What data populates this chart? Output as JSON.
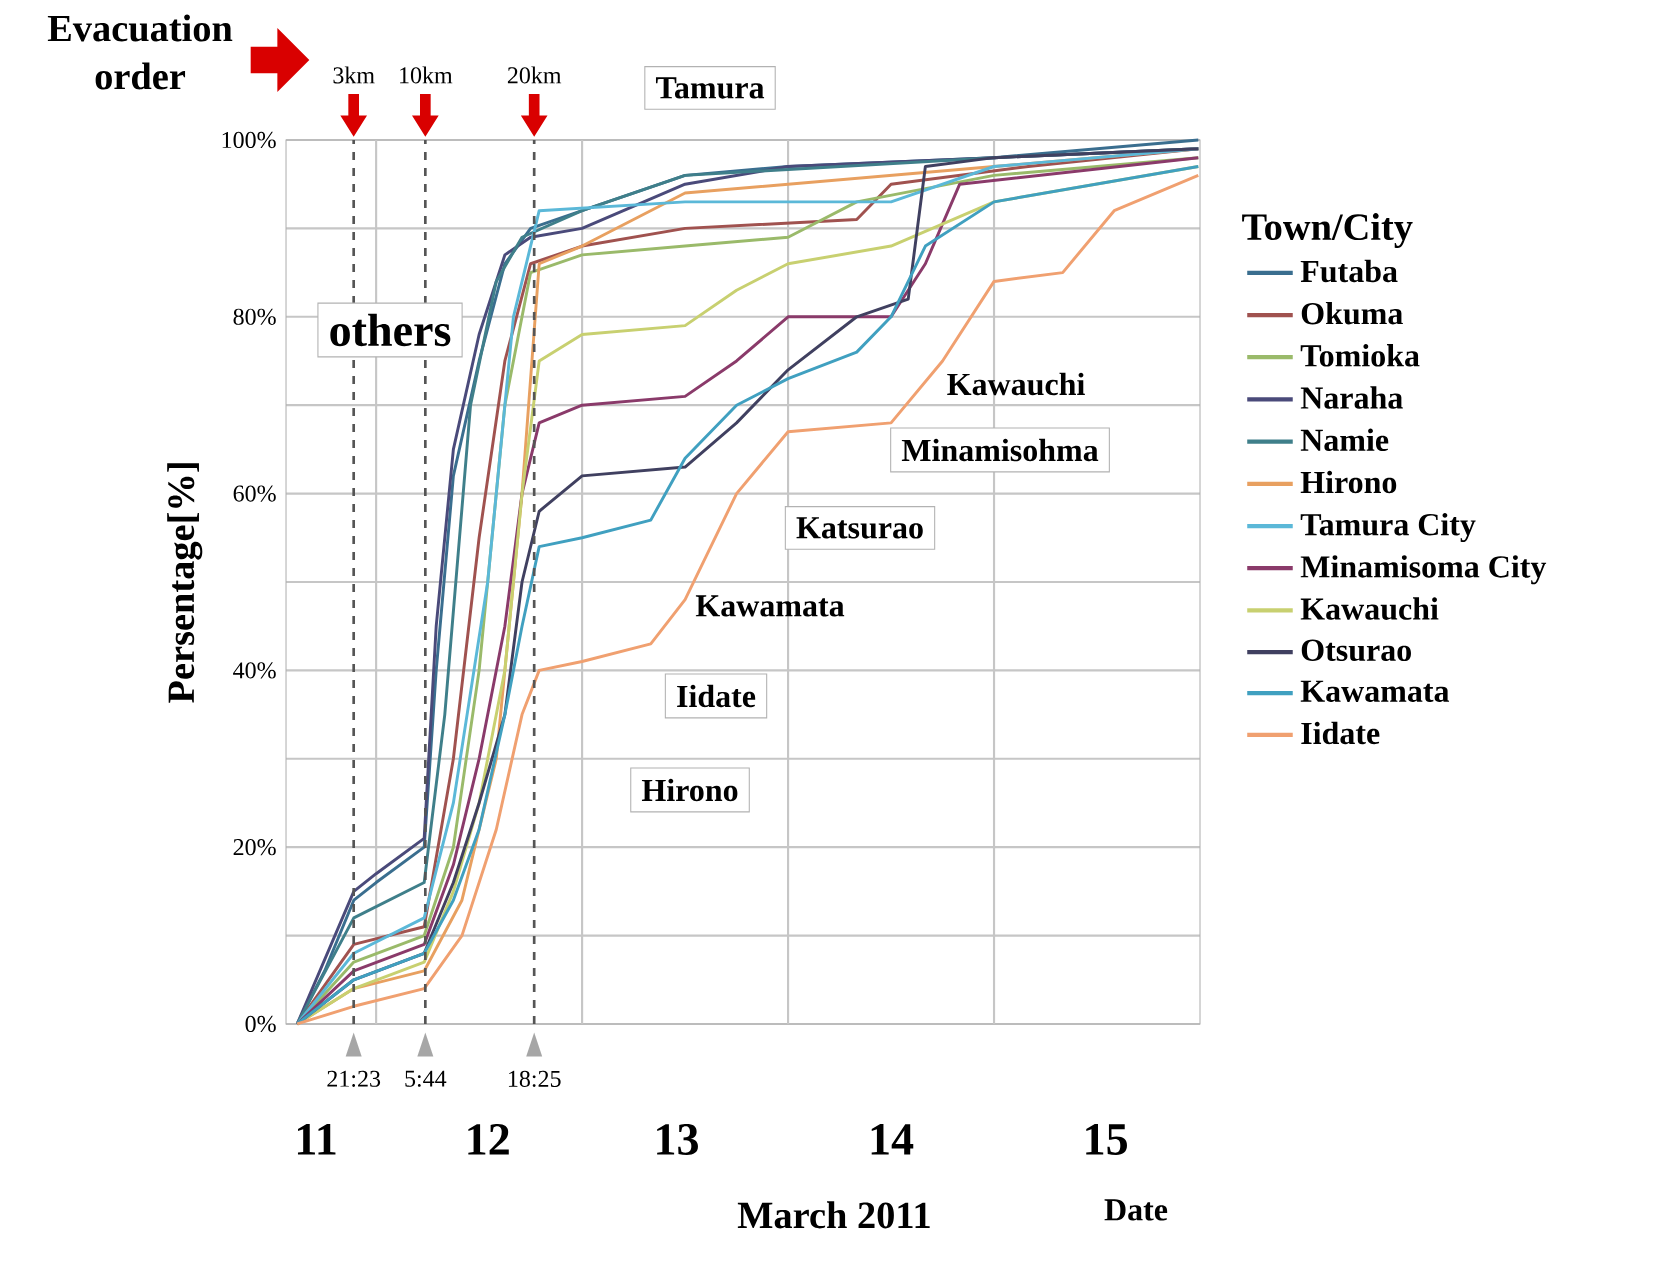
{
  "chart_data": {
    "type": "line",
    "xlabel": "March 2011",
    "ylabel": "Persentage[%]",
    "legend_title": "Town/City",
    "xlim": [
      "2011-03-11T13:30",
      "2011-03-16T00:00"
    ],
    "ylim": [
      0,
      100
    ],
    "xticks": [
      {
        "value": "2011-03-11T17:00",
        "label": "11"
      },
      {
        "value": "2011-03-12T13:00",
        "label": "12"
      },
      {
        "value": "2011-03-13T11:00",
        "label": "13"
      },
      {
        "value": "2011-03-14T12:00",
        "label": "14"
      },
      {
        "value": "2011-03-15T13:00",
        "label": "15"
      },
      {
        "value": "2011-03-12T00:00",
        "label": null
      },
      {
        "value": "2011-03-13T00:00",
        "label": null
      },
      {
        "value": "2011-03-14T00:00",
        "label": null
      },
      {
        "value": "2011-03-15T00:00",
        "label": null
      }
    ],
    "yticks": [
      {
        "value": 0,
        "label": "0%"
      },
      {
        "value": 10,
        "label": null
      },
      {
        "value": 20,
        "label": "20%"
      },
      {
        "value": 30,
        "label": null
      },
      {
        "value": 40,
        "label": "40%"
      },
      {
        "value": 50,
        "label": null
      },
      {
        "value": 60,
        "label": "60%"
      },
      {
        "value": 70,
        "label": null
      },
      {
        "value": 80,
        "label": "80%"
      },
      {
        "value": 90,
        "label": null
      },
      {
        "value": 100,
        "label": "100%"
      }
    ],
    "grid": true,
    "legend": "right",
    "series": [
      {
        "name": "Futaba",
        "color": "#3a6e8f",
        "x": [
          "2011-03-11T14:48",
          "2011-03-11T18:00",
          "2011-03-11T21:24",
          "2011-03-12T00:00",
          "2011-03-12T05:36",
          "2011-03-12T07:00",
          "2011-03-12T09:00",
          "2011-03-12T12:00",
          "2011-03-12T15:00",
          "2011-03-12T18:00",
          "2011-03-13T00:00",
          "2011-03-13T12:00",
          "2011-03-14T00:00",
          "2011-03-15T00:00",
          "2011-03-15T23:48"
        ],
        "values": [
          0,
          6,
          14,
          16,
          20,
          40,
          62,
          75,
          86,
          90,
          92,
          96,
          97,
          98,
          100
        ]
      },
      {
        "name": "Okuma",
        "color": "#a0524f",
        "x": [
          "2011-03-11T14:48",
          "2011-03-11T21:24",
          "2011-03-12T05:36",
          "2011-03-12T09:00",
          "2011-03-12T12:00",
          "2011-03-12T15:00",
          "2011-03-12T18:00",
          "2011-03-13T00:00",
          "2011-03-13T12:00",
          "2011-03-14T08:00",
          "2011-03-14T12:00",
          "2011-03-15T04:00",
          "2011-03-15T23:48"
        ],
        "values": [
          0,
          9,
          11,
          30,
          55,
          75,
          86,
          88,
          90,
          91,
          95,
          97,
          99
        ]
      },
      {
        "name": "Tomioka",
        "color": "#9aba6a",
        "x": [
          "2011-03-11T14:48",
          "2011-03-11T21:24",
          "2011-03-12T05:36",
          "2011-03-12T09:00",
          "2011-03-12T12:00",
          "2011-03-12T15:00",
          "2011-03-12T18:00",
          "2011-03-13T00:00",
          "2011-03-13T12:00",
          "2011-03-14T00:00",
          "2011-03-14T08:00",
          "2011-03-15T00:00",
          "2011-03-15T23:48"
        ],
        "values": [
          0,
          7,
          10,
          20,
          40,
          70,
          85,
          87,
          88,
          89,
          93,
          96,
          98
        ]
      },
      {
        "name": "Naraha",
        "color": "#4a4a7a",
        "x": [
          "2011-03-11T14:48",
          "2011-03-11T21:24",
          "2011-03-12T00:00",
          "2011-03-12T05:36",
          "2011-03-12T07:00",
          "2011-03-12T09:00",
          "2011-03-12T12:00",
          "2011-03-12T15:00",
          "2011-03-12T18:00",
          "2011-03-13T00:00",
          "2011-03-13T12:00",
          "2011-03-14T00:00",
          "2011-03-15T00:00",
          "2011-03-15T23:48"
        ],
        "values": [
          0,
          15,
          17,
          21,
          45,
          65,
          78,
          87,
          89,
          90,
          95,
          97,
          98,
          99
        ]
      },
      {
        "name": "Namie",
        "color": "#3f7f8a",
        "x": [
          "2011-03-11T14:48",
          "2011-03-11T21:24",
          "2011-03-12T05:36",
          "2011-03-12T08:00",
          "2011-03-12T11:00",
          "2011-03-12T14:00",
          "2011-03-12T17:00",
          "2011-03-13T00:00",
          "2011-03-13T12:00",
          "2011-03-15T00:00",
          "2011-03-15T23:48"
        ],
        "values": [
          0,
          12,
          16,
          35,
          70,
          84,
          89,
          92,
          96,
          98,
          99
        ]
      },
      {
        "name": "Hirono",
        "color": "#e8a060",
        "x": [
          "2011-03-11T14:48",
          "2011-03-11T21:24",
          "2011-03-12T05:36",
          "2011-03-12T10:00",
          "2011-03-12T14:00",
          "2011-03-12T17:00",
          "2011-03-12T19:00",
          "2011-03-13T00:00",
          "2011-03-13T12:00",
          "2011-03-15T00:00",
          "2011-03-15T23:48"
        ],
        "values": [
          0,
          4,
          6,
          14,
          30,
          60,
          86,
          88,
          94,
          97,
          99
        ]
      },
      {
        "name": "Tamura City",
        "color": "#5bb8d8",
        "x": [
          "2011-03-11T14:48",
          "2011-03-11T21:24",
          "2011-03-12T05:36",
          "2011-03-12T09:00",
          "2011-03-12T13:00",
          "2011-03-12T16:00",
          "2011-03-12T19:00",
          "2011-03-13T12:00",
          "2011-03-14T12:00",
          "2011-03-15T00:00",
          "2011-03-15T23:48"
        ],
        "values": [
          0,
          8,
          12,
          25,
          50,
          80,
          92,
          93,
          93,
          97,
          99
        ]
      },
      {
        "name": "Minamisoma City",
        "color": "#8a3a6a",
        "x": [
          "2011-03-11T14:48",
          "2011-03-11T21:24",
          "2011-03-12T05:36",
          "2011-03-12T09:00",
          "2011-03-12T12:00",
          "2011-03-12T15:00",
          "2011-03-12T17:00",
          "2011-03-12T19:00",
          "2011-03-13T00:00",
          "2011-03-13T12:00",
          "2011-03-13T18:00",
          "2011-03-14T00:00",
          "2011-03-14T12:00",
          "2011-03-14T16:00",
          "2011-03-14T20:00",
          "2011-03-15T23:48"
        ],
        "values": [
          0,
          6,
          9,
          18,
          30,
          45,
          60,
          68,
          70,
          71,
          75,
          80,
          80,
          86,
          95,
          98
        ]
      },
      {
        "name": "Kawauchi",
        "color": "#c8d070",
        "x": [
          "2011-03-11T14:48",
          "2011-03-11T21:24",
          "2011-03-12T05:36",
          "2011-03-12T09:00",
          "2011-03-12T12:00",
          "2011-03-12T15:00",
          "2011-03-12T17:00",
          "2011-03-12T19:00",
          "2011-03-13T00:00",
          "2011-03-13T12:00",
          "2011-03-13T18:00",
          "2011-03-14T00:00",
          "2011-03-14T12:00",
          "2011-03-15T00:00",
          "2011-03-15T23:48"
        ],
        "values": [
          0,
          4,
          7,
          15,
          25,
          40,
          60,
          75,
          78,
          79,
          83,
          86,
          88,
          93,
          97
        ]
      },
      {
        "name": "Otsurao",
        "color": "#404060",
        "x": [
          "2011-03-11T14:48",
          "2011-03-11T21:24",
          "2011-03-12T05:36",
          "2011-03-12T09:00",
          "2011-03-12T12:00",
          "2011-03-12T15:00",
          "2011-03-12T17:00",
          "2011-03-12T19:00",
          "2011-03-13T00:00",
          "2011-03-13T12:00",
          "2011-03-13T18:00",
          "2011-03-14T00:00",
          "2011-03-14T08:00",
          "2011-03-14T14:00",
          "2011-03-14T16:00",
          "2011-03-15T00:00",
          "2011-03-15T23:48"
        ],
        "values": [
          0,
          5,
          8,
          16,
          25,
          35,
          50,
          58,
          62,
          63,
          68,
          74,
          80,
          82,
          97,
          98,
          99
        ]
      },
      {
        "name": "Kawamata",
        "color": "#40a0c0",
        "x": [
          "2011-03-11T14:48",
          "2011-03-11T21:24",
          "2011-03-12T05:36",
          "2011-03-12T09:00",
          "2011-03-12T12:00",
          "2011-03-12T15:00",
          "2011-03-12T17:00",
          "2011-03-12T19:00",
          "2011-03-13T00:00",
          "2011-03-13T08:00",
          "2011-03-13T12:00",
          "2011-03-13T18:00",
          "2011-03-14T00:00",
          "2011-03-14T08:00",
          "2011-03-14T12:00",
          "2011-03-14T16:00",
          "2011-03-15T00:00",
          "2011-03-15T23:48"
        ],
        "values": [
          0,
          5,
          8,
          14,
          22,
          35,
          45,
          54,
          55,
          57,
          64,
          70,
          73,
          76,
          80,
          88,
          93,
          97
        ]
      },
      {
        "name": "Iidate",
        "color": "#f0a070",
        "x": [
          "2011-03-11T14:48",
          "2011-03-11T21:24",
          "2011-03-12T05:36",
          "2011-03-12T10:00",
          "2011-03-12T14:00",
          "2011-03-12T17:00",
          "2011-03-12T19:00",
          "2011-03-13T00:00",
          "2011-03-13T08:00",
          "2011-03-13T12:00",
          "2011-03-13T18:00",
          "2011-03-14T00:00",
          "2011-03-14T12:00",
          "2011-03-14T18:00",
          "2011-03-15T00:00",
          "2011-03-15T08:00",
          "2011-03-15T14:00",
          "2011-03-15T23:48"
        ],
        "values": [
          0,
          2,
          4,
          10,
          22,
          35,
          40,
          41,
          43,
          48,
          60,
          67,
          68,
          75,
          84,
          85,
          92,
          96
        ]
      }
    ],
    "ref_lines": [
      {
        "axis": "x",
        "value": "2011-03-11T21:23",
        "label": "3km",
        "color": "#555555",
        "line_style": "dashed"
      },
      {
        "axis": "x",
        "value": "2011-03-12T05:44",
        "label": "10km",
        "color": "#555555",
        "line_style": "dashed"
      },
      {
        "axis": "x",
        "value": "2011-03-12T18:25",
        "label": "20km",
        "color": "#555555",
        "line_style": "dashed"
      }
    ],
    "annotations": [
      "Evacuation order",
      "Tamura",
      "others",
      "Kawauchi",
      "Minamisohma",
      "Katsurao",
      "Kawamata",
      "Iidate",
      "Hirono",
      {
        "text": "21:23",
        "x": "2011-03-11T21:23",
        "y": 0
      },
      {
        "text": "5:44",
        "x": "2011-03-12T05:44",
        "y": 0
      },
      {
        "text": "18:25",
        "x": "2011-03-12T18:25",
        "y": 0
      },
      "Date"
    ]
  }
}
